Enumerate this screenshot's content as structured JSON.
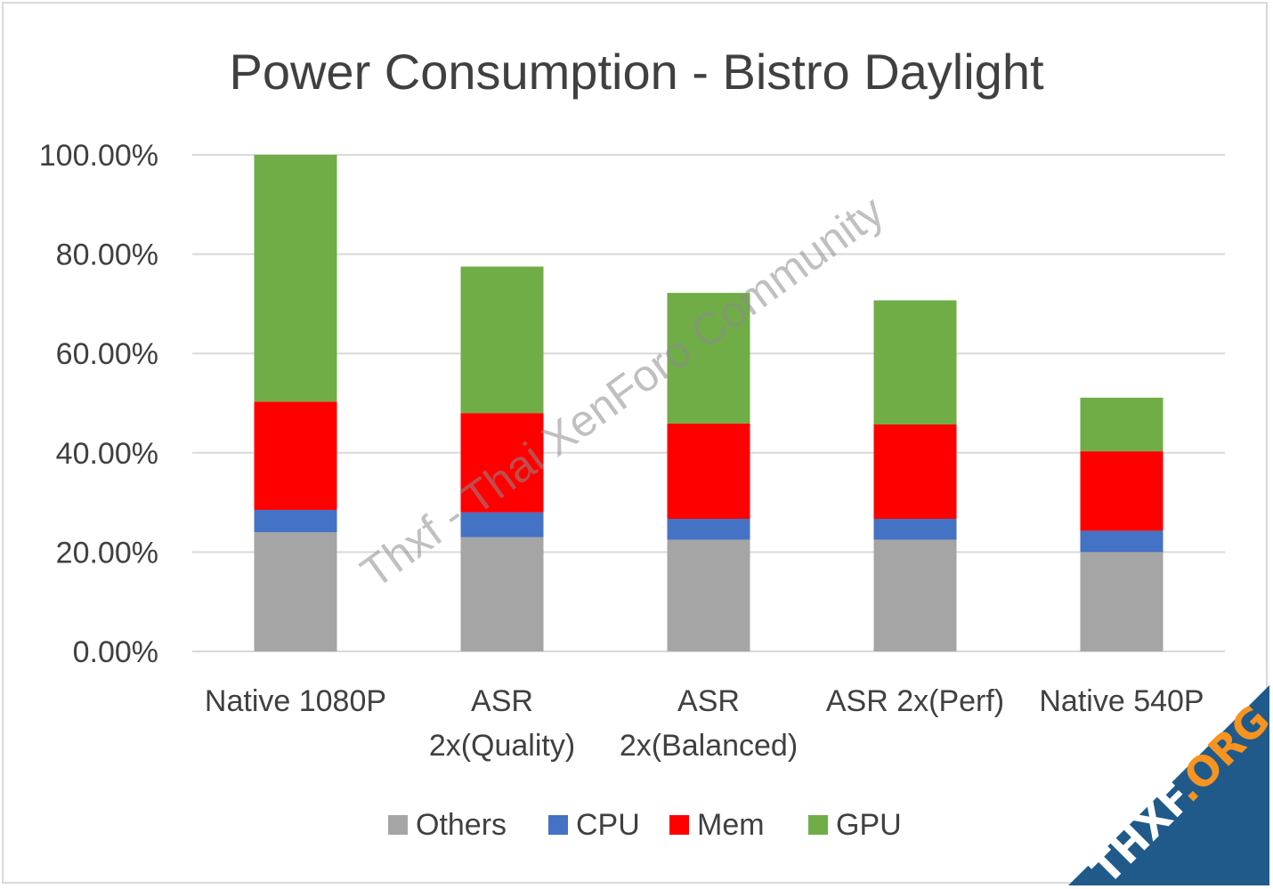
{
  "chart_data": {
    "type": "bar",
    "stacked": true,
    "title": "Power Consumption  - Bistro Daylight",
    "categories": [
      [
        "Native 1080P"
      ],
      [
        "ASR",
        "2x(Quality)"
      ],
      [
        "ASR",
        "2x(Balanced)"
      ],
      [
        "ASR 2x(Perf)"
      ],
      [
        "Native 540P"
      ]
    ],
    "series": [
      {
        "name": "Others",
        "color": "#a5a5a5",
        "values": [
          24.0,
          23.0,
          22.5,
          22.5,
          20.0
        ]
      },
      {
        "name": "CPU",
        "color": "#4472c4",
        "values": [
          4.5,
          5.0,
          4.2,
          4.2,
          4.3
        ]
      },
      {
        "name": "Mem",
        "color": "#ff0000",
        "values": [
          21.8,
          20.0,
          19.2,
          19.0,
          16.0
        ]
      },
      {
        "name": "GPU",
        "color": "#70ad47",
        "values": [
          49.7,
          29.5,
          26.3,
          25.0,
          10.8
        ]
      }
    ],
    "y_ticks": [
      "0.00%",
      "20.00%",
      "40.00%",
      "60.00%",
      "80.00%",
      "100.00%"
    ],
    "ylim": [
      0,
      100
    ],
    "grid": true,
    "legend_position": "bottom"
  },
  "watermark": {
    "text": "Thxf - Thai XenForo Community"
  },
  "badge": {
    "text_main": "THXF",
    "text_accent": ".ORG",
    "color": "#1f5a8a",
    "accent_color": "#f7931e"
  }
}
